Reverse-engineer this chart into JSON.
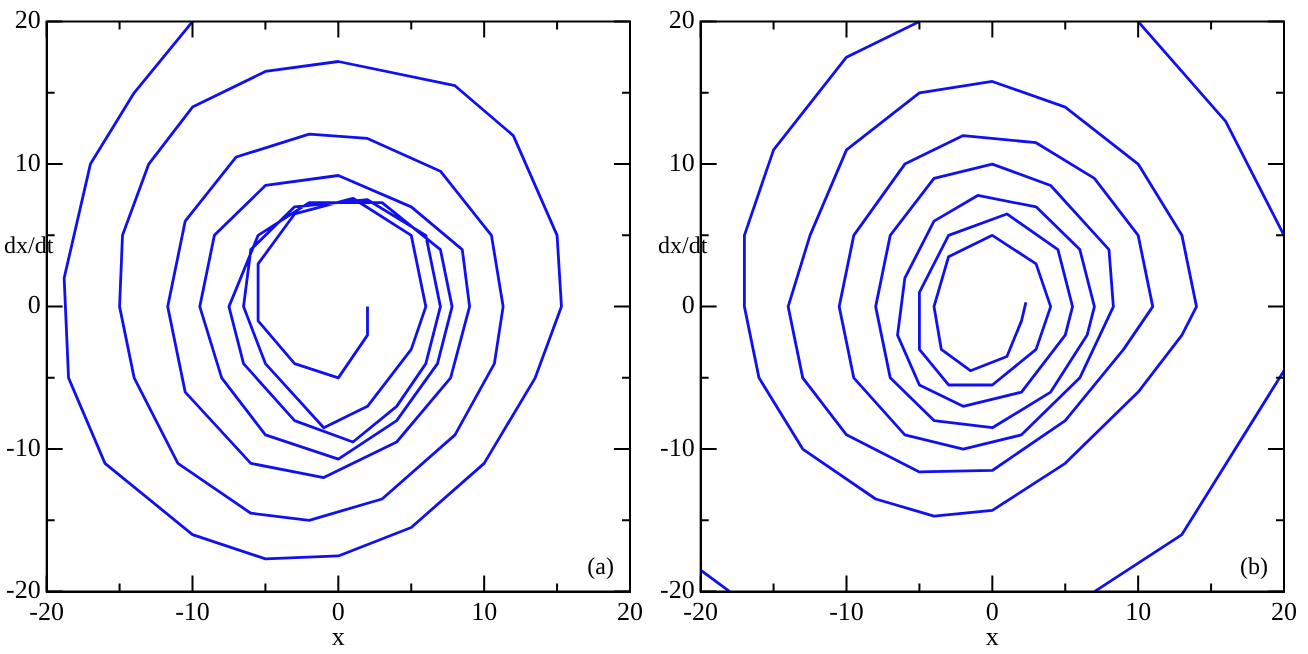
{
  "chart_data": [
    {
      "type": "line",
      "xlabel": "x",
      "ylabel": "dx/dt",
      "annotations": [
        "(a)"
      ],
      "marker": "none",
      "grid": false,
      "xlim": [
        -20,
        20
      ],
      "ylim": [
        -20,
        20
      ],
      "xticks": [
        -20,
        {
          "value": -15,
          "label": null
        },
        -10,
        {
          "value": -5,
          "label": null
        },
        0,
        {
          "value": 5,
          "label": null
        },
        10,
        {
          "value": 15,
          "label": null
        },
        20
      ],
      "yticks": [
        -20,
        {
          "value": -15,
          "label": null
        },
        -10,
        {
          "value": -5,
          "label": null
        },
        0,
        {
          "value": 5,
          "label": null
        },
        10,
        {
          "value": 15,
          "label": null
        },
        20
      ],
      "series": [
        {
          "color": "#1010f0",
          "x": [
            -10,
            -14,
            -17,
            -18.8,
            -18.5,
            -16,
            -10,
            -5,
            0,
            5,
            10,
            13.5,
            15.3,
            15,
            12,
            8,
            0,
            -5,
            -10,
            -13,
            -14.8,
            -15,
            -14,
            -11,
            -6,
            -2,
            3,
            8,
            10.7,
            11.3,
            10.5,
            7,
            2,
            -2,
            -7,
            -10.5,
            -11.7,
            -10.5,
            -6,
            -1,
            4,
            7.7,
            9,
            8.5,
            5,
            0,
            -5,
            -8.5,
            -9.5,
            -8,
            -5,
            0,
            4,
            6.8,
            7.8,
            7,
            3,
            -2,
            -5.5,
            -7.5,
            -6.5,
            -3,
            1,
            4,
            6,
            7,
            6,
            2,
            -3,
            -6,
            -6.5,
            -5,
            -1,
            2,
            5,
            6,
            5,
            1,
            -3,
            -5.5,
            -5.5,
            -3,
            0,
            2,
            2
          ],
          "values": [
            20,
            15,
            10,
            2,
            -5,
            -11,
            -16,
            -17.7,
            -17.5,
            -15.5,
            -11,
            -5,
            0,
            5,
            12,
            15.5,
            17.2,
            16.5,
            14,
            10,
            5,
            0,
            -5,
            -11,
            -14.5,
            -15,
            -13.5,
            -9,
            -4,
            0,
            5,
            9.5,
            11.8,
            12.1,
            10.5,
            6,
            0,
            -6,
            -11,
            -12,
            -9.5,
            -5,
            0,
            4,
            7,
            9.2,
            8.5,
            5,
            0,
            -5,
            -9,
            -10.7,
            -8,
            -4,
            0,
            4,
            7.3,
            7.3,
            5,
            0,
            -4,
            -8,
            -9.5,
            -7,
            -4,
            0,
            5,
            7.5,
            7,
            4,
            0,
            -4,
            -8.5,
            -7,
            -3,
            0,
            5,
            7.6,
            6.5,
            3,
            -1,
            -4,
            -5,
            -2,
            0
          ]
        }
      ]
    },
    {
      "type": "line",
      "xlabel": "x",
      "ylabel": "dx/dt",
      "annotations": [
        "(b)"
      ],
      "marker": "none",
      "grid": false,
      "xlim": [
        -20,
        20
      ],
      "ylim": [
        -20,
        20
      ],
      "xticks": [
        -20,
        {
          "value": -15,
          "label": null
        },
        -10,
        {
          "value": -5,
          "label": null
        },
        0,
        {
          "value": 5,
          "label": null
        },
        10,
        {
          "value": 15,
          "label": null
        },
        20
      ],
      "yticks": [
        -20,
        {
          "value": -15,
          "label": null
        },
        -10,
        {
          "value": -5,
          "label": null
        },
        0,
        {
          "value": 5,
          "label": null
        },
        10,
        {
          "value": 15,
          "label": null
        },
        20
      ],
      "series": [
        {
          "color": "#1010f0",
          "x": [
            -20,
            -18
          ],
          "values": [
            -18.5,
            -20
          ]
        },
        {
          "color": "#1010f0",
          "x": [
            7,
            13,
            20
          ],
          "values": [
            -20,
            -16,
            -4.5
          ]
        },
        {
          "color": "#1010f0",
          "x": [
            20,
            16,
            10
          ],
          "values": [
            5,
            13,
            20
          ]
        },
        {
          "color": "#1010f0",
          "x": [
            -5,
            -10,
            -15,
            -17,
            -17,
            -16,
            -13,
            -8,
            -4,
            0,
            5,
            10,
            13,
            14,
            13,
            10,
            5,
            0,
            -5,
            -10,
            -12.5,
            -14,
            -13,
            -10,
            -5,
            0,
            5,
            9,
            11,
            10,
            7,
            3,
            -2,
            -6,
            -9.5,
            -10.5,
            -9.5,
            -6,
            -2,
            2,
            6,
            8.3,
            8,
            4,
            0,
            -4,
            -7,
            -8,
            -7,
            -4,
            0,
            4,
            6.5,
            7,
            6,
            3,
            -1,
            -4,
            -6,
            -6.5,
            -5,
            -2,
            2,
            5,
            5.5,
            4.5,
            1,
            -3,
            -5,
            -5,
            -3,
            0,
            3,
            4,
            3,
            0,
            -3,
            -4,
            -3.5,
            -1.5,
            1,
            2,
            2.3
          ],
          "values": [
            20,
            17.5,
            11,
            5,
            0,
            -5,
            -10,
            -13.5,
            -14.7,
            -14.3,
            -11,
            -6,
            -2,
            0,
            5,
            10,
            14,
            15.8,
            15,
            11,
            5,
            0,
            -5,
            -9,
            -11.6,
            -11.5,
            -8,
            -3,
            0,
            5,
            9,
            11.5,
            12,
            10,
            5,
            0,
            -5,
            -9,
            -10,
            -9,
            -5,
            0,
            4,
            8.5,
            10,
            9,
            5,
            0,
            -5,
            -8,
            -8.5,
            -6,
            -2,
            0,
            4,
            7,
            7.8,
            6,
            2,
            -2,
            -5.5,
            -7,
            -6,
            -2,
            0,
            4,
            6.5,
            5,
            1,
            -3,
            -5.5,
            -5.5,
            -3,
            0,
            3,
            5,
            3.5,
            0,
            -3,
            -4.5,
            -3.5,
            -1,
            0.3
          ]
        }
      ]
    }
  ]
}
